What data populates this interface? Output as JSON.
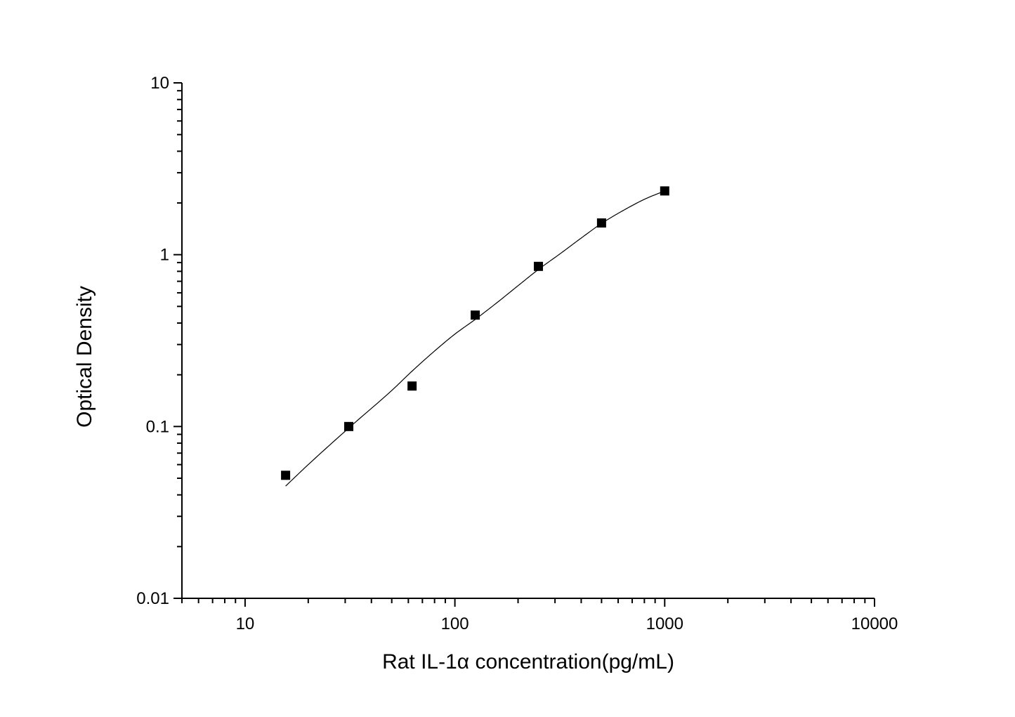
{
  "chart_data": {
    "type": "scatter",
    "title": "",
    "xlabel": "Rat IL-1α  concentration(pg/mL)",
    "ylabel": "Optical Density",
    "x_scale": "log",
    "y_scale": "log",
    "xlim": [
      5,
      10000
    ],
    "ylim": [
      0.01,
      10
    ],
    "x_ticks": [
      10,
      100,
      1000,
      10000
    ],
    "x_tick_labels": [
      "10",
      "100",
      "1000",
      "10000"
    ],
    "y_ticks": [
      0.01,
      0.1,
      1,
      10
    ],
    "y_tick_labels": [
      "0.01",
      "0.1",
      "1",
      "10"
    ],
    "grid": false,
    "legend": "none",
    "series": [
      {
        "marker": "square",
        "color": "#000000",
        "points": [
          {
            "x": 15.6,
            "y": 0.052
          },
          {
            "x": 31.2,
            "y": 0.1
          },
          {
            "x": 62.5,
            "y": 0.172
          },
          {
            "x": 125,
            "y": 0.445
          },
          {
            "x": 250,
            "y": 0.855
          },
          {
            "x": 500,
            "y": 1.53
          },
          {
            "x": 1000,
            "y": 2.35
          }
        ]
      }
    ],
    "fit_curve": {
      "type": "four-parameter logistic",
      "color": "#000000",
      "x_range": [
        15.6,
        1000
      ],
      "points": [
        {
          "x": 15.6,
          "y": 0.045
        },
        {
          "x": 20,
          "y": 0.06
        },
        {
          "x": 31.2,
          "y": 0.098
        },
        {
          "x": 50,
          "y": 0.162
        },
        {
          "x": 62.5,
          "y": 0.21
        },
        {
          "x": 80,
          "y": 0.275
        },
        {
          "x": 100,
          "y": 0.345
        },
        {
          "x": 125,
          "y": 0.42
        },
        {
          "x": 160,
          "y": 0.53
        },
        {
          "x": 200,
          "y": 0.66
        },
        {
          "x": 250,
          "y": 0.82
        },
        {
          "x": 320,
          "y": 1.02
        },
        {
          "x": 400,
          "y": 1.25
        },
        {
          "x": 500,
          "y": 1.52
        },
        {
          "x": 630,
          "y": 1.8
        },
        {
          "x": 800,
          "y": 2.1
        },
        {
          "x": 1000,
          "y": 2.35
        }
      ]
    }
  }
}
